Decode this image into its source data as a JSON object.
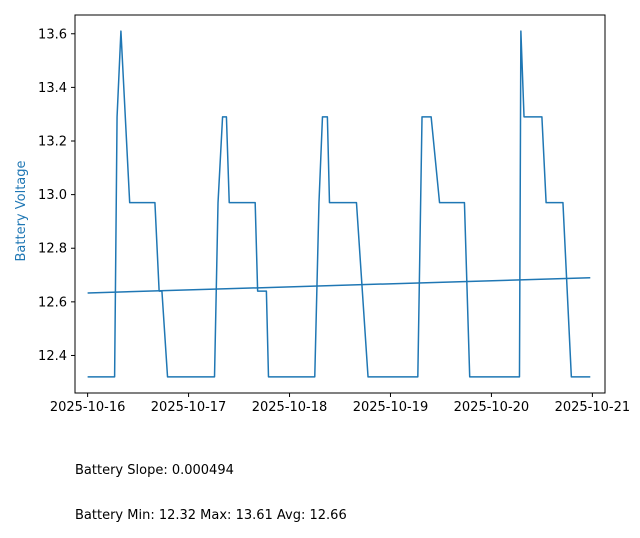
{
  "chart_data": {
    "type": "line",
    "title": "",
    "xlabel": "",
    "ylabel": "Battery Voltage",
    "ylabel_color": "#1f77b4",
    "line_color": "#1f77b4",
    "x_ticks": [
      "2025-10-16",
      "2025-10-17",
      "2025-10-18",
      "2025-10-19",
      "2025-10-20",
      "2025-10-21"
    ],
    "y_ticks": [
      "12.4",
      "12.6",
      "12.8",
      "13.0",
      "13.2",
      "13.4",
      "13.6"
    ],
    "xlim": [
      "2025-10-15 21:00",
      "2025-10-21 03:00"
    ],
    "ylim": [
      12.26,
      13.67
    ],
    "grid": false,
    "series": [
      {
        "values": [
          [
            "2025-10-16 00:00",
            12.32
          ],
          [
            "2025-10-16 06:25",
            12.32
          ],
          [
            "2025-10-16 07:00",
            13.29
          ],
          [
            "2025-10-16 07:55",
            13.61
          ],
          [
            "2025-10-16 10:00",
            12.97
          ],
          [
            "2025-10-16 16:00",
            12.97
          ],
          [
            "2025-10-16 17:00",
            12.64
          ],
          [
            "2025-10-16 17:40",
            12.64
          ],
          [
            "2025-10-16 19:00",
            12.32
          ],
          [
            "2025-10-17 06:10",
            12.32
          ],
          [
            "2025-10-17 07:00",
            12.97
          ],
          [
            "2025-10-17 08:05",
            13.29
          ],
          [
            "2025-10-17 09:00",
            13.29
          ],
          [
            "2025-10-17 09:40",
            12.97
          ],
          [
            "2025-10-17 15:50",
            12.97
          ],
          [
            "2025-10-17 16:25",
            12.64
          ],
          [
            "2025-10-17 18:30",
            12.64
          ],
          [
            "2025-10-17 19:00",
            12.32
          ],
          [
            "2025-10-18 06:00",
            12.32
          ],
          [
            "2025-10-18 07:00",
            12.97
          ],
          [
            "2025-10-18 07:50",
            13.29
          ],
          [
            "2025-10-18 09:00",
            13.29
          ],
          [
            "2025-10-18 09:30",
            12.97
          ],
          [
            "2025-10-18 15:55",
            12.97
          ],
          [
            "2025-10-18 18:40",
            12.32
          ],
          [
            "2025-10-19 06:30",
            12.32
          ],
          [
            "2025-10-19 07:30",
            13.29
          ],
          [
            "2025-10-19 09:40",
            13.29
          ],
          [
            "2025-10-19 11:40",
            12.97
          ],
          [
            "2025-10-19 17:35",
            12.97
          ],
          [
            "2025-10-19 18:50",
            12.32
          ],
          [
            "2025-10-20 06:40",
            12.32
          ],
          [
            "2025-10-20 07:00",
            13.61
          ],
          [
            "2025-10-20 07:45",
            13.29
          ],
          [
            "2025-10-20 12:00",
            13.29
          ],
          [
            "2025-10-20 13:00",
            12.97
          ],
          [
            "2025-10-20 17:00",
            12.97
          ],
          [
            "2025-10-20 19:00",
            12.32
          ],
          [
            "2025-10-20 23:30",
            12.32
          ]
        ]
      },
      {
        "values": [
          [
            "2025-10-16 00:00",
            12.633
          ],
          [
            "2025-10-20 23:30",
            12.69
          ]
        ]
      }
    ]
  },
  "footer": {
    "line1": "Battery Slope: 0.000494",
    "line2": "Battery Min: 12.32 Max: 13.61 Avg: 12.66"
  }
}
